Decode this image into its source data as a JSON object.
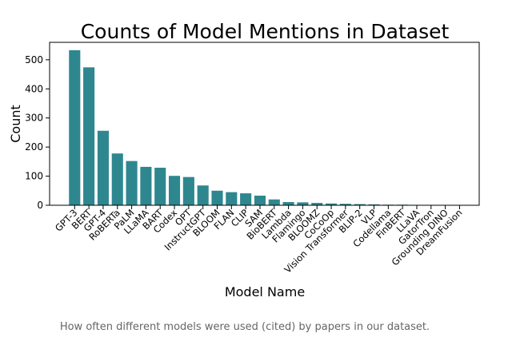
{
  "chart_data": {
    "type": "bar",
    "title": "Counts of Model Mentions in Dataset",
    "xlabel": "Model Name",
    "ylabel": "Count",
    "ylim": [
      0,
      560
    ],
    "yticks": [
      0,
      100,
      200,
      300,
      400,
      500
    ],
    "grid": false,
    "bar_color": "#2e878f",
    "categories": [
      "GPT-3",
      "BERT",
      "GPT-4",
      "RoBERTa",
      "PaLM",
      "LLaMA",
      "BART",
      "Codex",
      "OPT",
      "InstructGPT",
      "BLOOM",
      "FLAN",
      "CLIP",
      "SAM",
      "BioBERT",
      "Lambda",
      "Flamingo",
      "BLOOMZ",
      "CoCoOp",
      "Vision Transformer",
      "BLIP-2",
      "VLP",
      "Codellama",
      "FinBERT",
      "LLaVA",
      "GatorTron",
      "Grounding DINO",
      "DreamFusion"
    ],
    "values": [
      533,
      474,
      256,
      178,
      152,
      132,
      129,
      101,
      97,
      68,
      50,
      45,
      41,
      33,
      20,
      11,
      10,
      8,
      6,
      5,
      4,
      3,
      2,
      2,
      1,
      1,
      1,
      1
    ]
  },
  "caption": "How often different models were used (cited) by papers in our dataset."
}
